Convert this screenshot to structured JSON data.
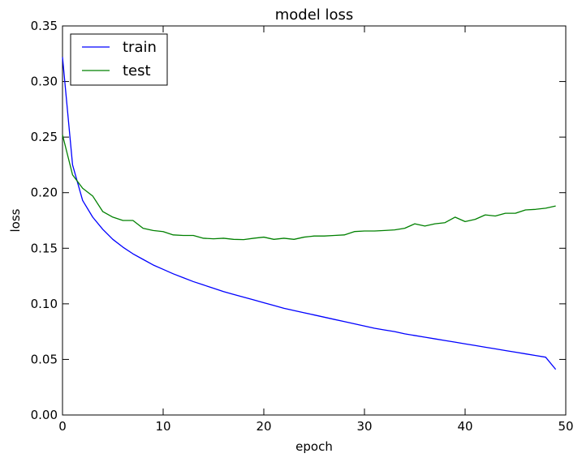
{
  "chart_data": {
    "type": "line",
    "title": "model loss",
    "xlabel": "epoch",
    "ylabel": "loss",
    "xlim": [
      0,
      50
    ],
    "ylim": [
      0,
      0.35
    ],
    "xticks": [
      0,
      10,
      20,
      30,
      40,
      50
    ],
    "xtick_labels": [
      "0",
      "10",
      "20",
      "30",
      "40",
      "50"
    ],
    "yticks": [
      0,
      0.05,
      0.1,
      0.15,
      0.2,
      0.25,
      0.3,
      0.35
    ],
    "ytick_labels": [
      "0.00",
      "0.05",
      "0.10",
      "0.15",
      "0.20",
      "0.25",
      "0.30",
      "0.35"
    ],
    "grid": false,
    "legend_position": "top-left",
    "x": [
      0,
      1,
      2,
      3,
      4,
      5,
      6,
      7,
      8,
      9,
      10,
      11,
      12,
      13,
      14,
      15,
      16,
      17,
      18,
      19,
      20,
      21,
      22,
      23,
      24,
      25,
      26,
      27,
      28,
      29,
      30,
      31,
      32,
      33,
      34,
      35,
      36,
      37,
      38,
      39,
      40,
      41,
      42,
      43,
      44,
      45,
      46,
      47,
      48,
      49
    ],
    "series": [
      {
        "name": "train",
        "color": "#0000ff",
        "values": [
          0.322,
          0.225,
          0.193,
          0.178,
          0.167,
          0.158,
          0.151,
          0.145,
          0.14,
          0.135,
          0.131,
          0.127,
          0.1235,
          0.12,
          0.117,
          0.114,
          0.111,
          0.1085,
          0.106,
          0.1035,
          0.101,
          0.0985,
          0.096,
          0.094,
          0.092,
          0.09,
          0.088,
          0.086,
          0.084,
          0.082,
          0.08,
          0.078,
          0.0765,
          0.075,
          0.073,
          0.0715,
          0.07,
          0.0685,
          0.067,
          0.0655,
          0.064,
          0.0625,
          0.061,
          0.0595,
          0.058,
          0.0565,
          0.055,
          0.0535,
          0.052,
          0.041
        ]
      },
      {
        "name": "test",
        "color": "#008000",
        "values": [
          0.252,
          0.216,
          0.204,
          0.197,
          0.183,
          0.178,
          0.175,
          0.175,
          0.168,
          0.166,
          0.165,
          0.162,
          0.1615,
          0.1615,
          0.159,
          0.1585,
          0.159,
          0.158,
          0.1578,
          0.159,
          0.16,
          0.158,
          0.159,
          0.158,
          0.16,
          0.161,
          0.161,
          0.1615,
          0.162,
          0.165,
          0.1655,
          0.1655,
          0.166,
          0.1665,
          0.168,
          0.172,
          0.17,
          0.172,
          0.173,
          0.178,
          0.174,
          0.176,
          0.18,
          0.179,
          0.1815,
          0.1815,
          0.1845,
          0.185,
          0.186,
          0.188
        ]
      }
    ]
  }
}
